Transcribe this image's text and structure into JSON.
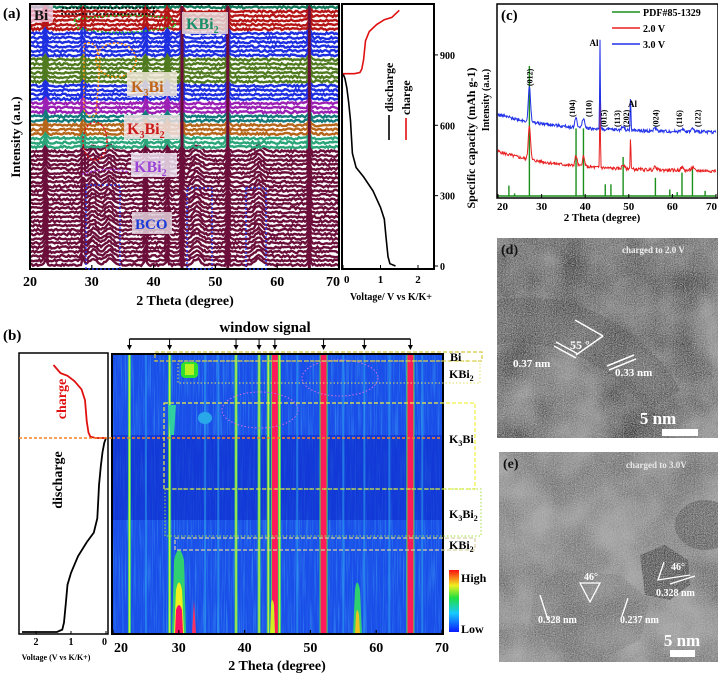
{
  "figure": {
    "panels": [
      "(a)",
      "(b)",
      "(c)",
      "(d)",
      "(e)"
    ]
  },
  "chart_data": [
    {
      "id": "a",
      "type": "line",
      "title": "",
      "panel_label": "(a)",
      "xlabel": "2 Theta (degree)",
      "ylabel": "Intensity (a.u.)",
      "xlim": [
        20,
        70
      ],
      "xticks": [
        20,
        30,
        40,
        50,
        60,
        70
      ],
      "description": "Stacked in-situ XRD patterns (waterfall) colored by phase region",
      "phase_regions": [
        {
          "label": "Bi",
          "color": "#1a8f6a"
        },
        {
          "label": "KBi2",
          "color": "#1a8f6a"
        },
        {
          "label": "K3Bi",
          "color": "#c0661a"
        },
        {
          "label": "K3Bi2",
          "color": "#cc1a1a"
        },
        {
          "label": "KBi2",
          "color": "#9b44d6"
        },
        {
          "label": "BCO",
          "color": "#1a3ad6"
        }
      ],
      "series_color_bands": [
        "#127a5a",
        "#b51515",
        "#1d2ee0",
        "#4f7a1f",
        "#1d2ee0",
        "#9b1fb5",
        "#127a7a",
        "#b5661a",
        "#2aa57a",
        "#6b0f3a"
      ],
      "fixed_peaks": [
        22.5,
        28.6,
        38.7,
        42.2,
        44.6,
        52.0,
        65.2
      ],
      "bco_peaks": [
        30.2,
        32.8,
        47.0,
        57.0
      ]
    },
    {
      "id": "a-inset",
      "type": "line",
      "xlabel": "Voltage/ V vs K/K+",
      "ylabel": "Specific capacity (mAh g-1)",
      "xlim": [
        0,
        2.4
      ],
      "ylim": [
        0,
        1100
      ],
      "xticks": [
        0,
        1,
        2
      ],
      "yticks": [
        0,
        300,
        600,
        900
      ],
      "legend": [
        "discharge",
        "charge"
      ],
      "series": [
        {
          "name": "discharge",
          "color": "#000000",
          "x": [
            1.4,
            1.25,
            1.2,
            1.15,
            1.1,
            1.0,
            0.8,
            0.55,
            0.35,
            0.25,
            0.22,
            0.2,
            0.15,
            0.1,
            0.05,
            0.0
          ],
          "y": [
            0,
            10,
            40,
            120,
            200,
            250,
            320,
            380,
            420,
            480,
            560,
            620,
            700,
            760,
            800,
            820
          ]
        },
        {
          "name": "charge",
          "color": "#e01010",
          "x": [
            0.0,
            0.3,
            0.45,
            0.5,
            0.55,
            0.6,
            0.7,
            0.9,
            1.1,
            1.3,
            1.5
          ],
          "y": [
            820,
            820,
            825,
            840,
            880,
            960,
            1000,
            1030,
            1050,
            1060,
            1090
          ]
        }
      ]
    },
    {
      "id": "b",
      "type": "heatmap",
      "panel_label": "(b)",
      "title": "window signal",
      "xlabel": "2 Theta (degree)",
      "xlim": [
        20,
        70
      ],
      "xticks": [
        20,
        30,
        40,
        50,
        60,
        70
      ],
      "colorbar": {
        "high": "High",
        "low": "Low"
      },
      "window_signal_positions": [
        22.5,
        28.6,
        38.7,
        42.2,
        44.6,
        52.0,
        58.2,
        65.2
      ],
      "strong_lines": [
        44.6,
        52.0,
        65.2
      ],
      "weak_lines": [
        22.5,
        28.6,
        38.7,
        42.2,
        43.6,
        45.3
      ],
      "phase_labels": [
        "Bi",
        "KBi2",
        "K3Bi",
        "K3Bi2",
        "KBi2"
      ],
      "left_curve": {
        "xlabel": "Voltage (V vs K/K+)",
        "xticks": [
          2,
          1,
          0
        ],
        "labels": [
          "charge",
          "discharge"
        ]
      }
    },
    {
      "id": "c",
      "type": "line",
      "panel_label": "(c)",
      "xlabel": "2 Theta (degree)",
      "ylabel": "Intensity (a.u.)",
      "xlim": [
        20,
        70
      ],
      "xticks": [
        20,
        30,
        40,
        50,
        60,
        70
      ],
      "legend": [
        "PDF#85-1329",
        "2.0 V",
        "3.0 V"
      ],
      "legend_position": "top-right",
      "series": [
        {
          "name": "PDF#85-1329",
          "color": "#1a8f1a",
          "type": "stick",
          "x": [
            22.5,
            23.8,
            27.2,
            37.9,
            39.6,
            44.6,
            45.9,
            48.7,
            56.1,
            59.4,
            61.1,
            62.2,
            64.6,
            67.5
          ],
          "y": [
            8,
            2,
            100,
            52,
            52,
            9,
            9,
            30,
            14,
            5,
            3,
            18,
            22,
            4
          ]
        },
        {
          "name": "2.0 V",
          "color": "#e82020"
        },
        {
          "name": "3.0 V",
          "color": "#2030e8"
        }
      ],
      "annotations": [
        {
          "text": "(012)",
          "x": 27.2
        },
        {
          "text": "(104)",
          "x": 37.9
        },
        {
          "text": "(110)",
          "x": 39.6
        },
        {
          "text": "(015)",
          "x": 44.6
        },
        {
          "text": "(113)",
          "x": 45.9
        },
        {
          "text": "(202)",
          "x": 48.7
        },
        {
          "text": "(024)",
          "x": 56.1
        },
        {
          "text": "(116)",
          "x": 62.2
        },
        {
          "text": "(122)",
          "x": 64.6
        },
        {
          "text": "Al",
          "x": 43.4
        },
        {
          "text": "Al",
          "x": 50.4
        }
      ]
    }
  ],
  "tem": {
    "d": {
      "label": "(d)",
      "caption": "charged to 2.0 V",
      "spacing_1": "0.37 nm",
      "spacing_2": "0.33 nm",
      "angle": "55 °",
      "scale": "5 nm"
    },
    "e": {
      "label": "(e)",
      "caption": "charged to 3.0V",
      "angle_1": "46°",
      "angle_2": "46°",
      "spacing_1": "0.328 nm",
      "spacing_2": "0.237 nm",
      "spacing_3": "0.328 nm",
      "scale": "5 nm"
    }
  },
  "text": {
    "a_phase_labels": [
      "Bi",
      "KBi",
      "K",
      "Bi",
      "K",
      "Bi",
      "KBi",
      "BCO"
    ]
  }
}
